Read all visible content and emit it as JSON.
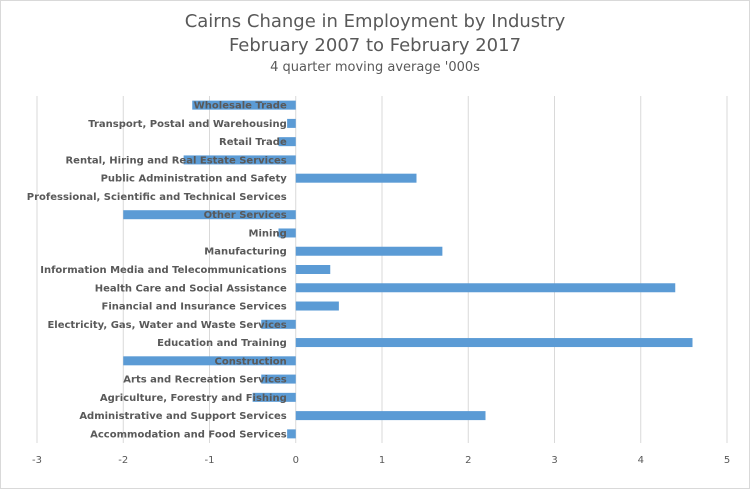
{
  "chart_data": {
    "type": "bar",
    "orientation": "horizontal",
    "title": "Cairns Change in Employment by Industry",
    "title_line2": "February 2007 to February 2017",
    "subtitle": "4 quarter moving average '000s",
    "categories": [
      "Wholesale Trade",
      "Transport, Postal and Warehousing",
      "Retail Trade",
      "Rental, Hiring and Real Estate Services",
      "Public Administration and Safety",
      "Professional, Scientific and Technical Services",
      "Other Services",
      "Mining",
      "Manufacturing",
      "Information Media and Telecommunications",
      "Health Care and Social Assistance",
      "Financial and Insurance Services",
      "Electricity, Gas, Water and Waste Services",
      "Education and Training",
      "Construction",
      "Arts and Recreation Services",
      "Agriculture, Forestry and Fishing",
      "Administrative and Support Services",
      "Accommodation and Food Services"
    ],
    "values": [
      -1.2,
      -0.1,
      -0.2,
      -1.3,
      1.4,
      0,
      -2.0,
      -0.2,
      1.7,
      0.4,
      4.4,
      0.5,
      -0.4,
      4.6,
      -2.0,
      -0.4,
      -0.5,
      2.2,
      -0.1
    ],
    "xlim": [
      -3,
      5
    ],
    "xticks": [
      "-3",
      "-2",
      "-1",
      "0",
      "1",
      "2",
      "3",
      "4",
      "5"
    ],
    "grid": true,
    "bar_color": "#5b9bd5",
    "grid_color": "#d9d9d9"
  }
}
